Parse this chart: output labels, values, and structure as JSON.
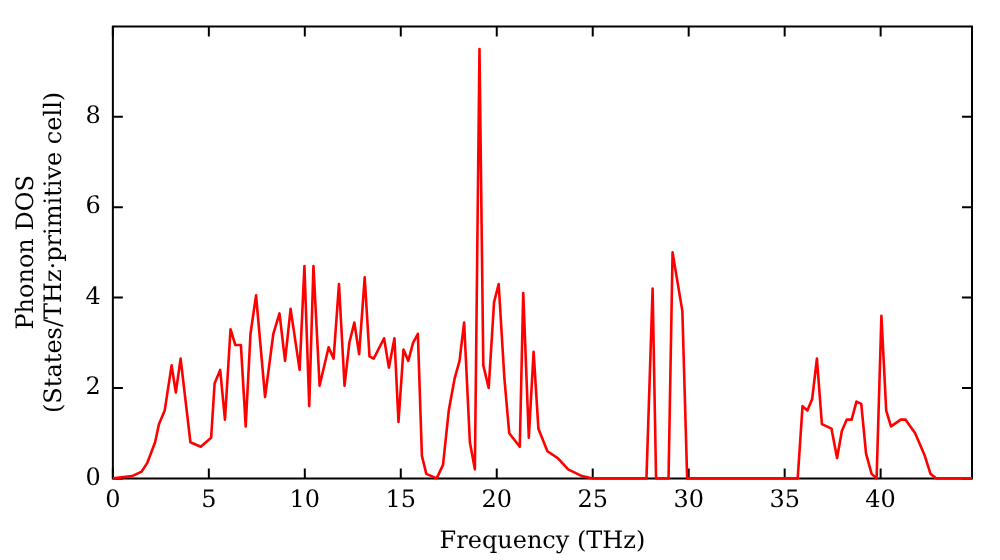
{
  "chart_data": {
    "type": "line",
    "xlabel": "Frequency (THz)",
    "ylabel": "Phonon DOS\n(States/THz·primitive cell)",
    "xlim": [
      0,
      44.76
    ],
    "ylim": [
      0,
      10
    ],
    "xticks": [
      0,
      5,
      10,
      15,
      20,
      25,
      30,
      35,
      40
    ],
    "yticks": [
      0,
      2,
      4,
      6,
      8
    ],
    "grid": false,
    "legend": false,
    "marker": "none",
    "line_style": "solid",
    "series": [
      {
        "color": "#ff0000",
        "x": [
          0,
          1,
          1.5,
          1.8,
          2.2,
          2.4,
          2.7,
          3.06,
          3.28,
          3.53,
          4.04,
          4.58,
          5.12,
          5.3,
          5.59,
          5.84,
          6.13,
          6.38,
          6.67,
          6.92,
          7.17,
          7.46,
          7.93,
          8.36,
          8.68,
          8.97,
          9.26,
          9.73,
          9.98,
          10.23,
          10.45,
          10.77,
          11.24,
          11.5,
          11.78,
          12.07,
          12.32,
          12.58,
          12.83,
          13.12,
          13.37,
          13.59,
          14.13,
          14.38,
          14.67,
          14.88,
          15.14,
          15.39,
          15.64,
          15.89,
          16.1,
          16.33,
          16.87,
          17.2,
          17.5,
          17.8,
          18.06,
          18.3,
          18.6,
          18.86,
          19.1,
          19.3,
          19.58,
          19.86,
          20.1,
          20.4,
          20.65,
          21.2,
          21.38,
          21.67,
          21.92,
          22.17,
          22.64,
          23.18,
          23.72,
          24.44,
          25,
          27.8,
          28.12,
          28.3,
          28.95,
          29.16,
          29.67,
          29.92,
          30,
          35.68,
          35.93,
          36.18,
          36.43,
          36.68,
          36.94,
          37.44,
          37.73,
          37.98,
          38.23,
          38.49,
          38.74,
          38.99,
          39.24,
          39.53,
          39.79,
          40.04,
          40.29,
          40.54,
          41.05,
          41.3,
          41.8,
          42.3,
          42.6,
          42.9,
          44.76
        ],
        "values": [
          0,
          0.05,
          0.15,
          0.35,
          0.8,
          1.2,
          1.5,
          2.5,
          1.9,
          2.65,
          0.8,
          0.7,
          0.9,
          2.1,
          2.4,
          1.3,
          3.3,
          2.95,
          2.95,
          1.15,
          3.2,
          4.05,
          1.8,
          3.2,
          3.65,
          2.6,
          3.75,
          2.4,
          4.7,
          1.6,
          4.7,
          2.05,
          2.9,
          2.65,
          4.3,
          2.05,
          3.0,
          3.45,
          2.75,
          4.45,
          2.7,
          2.65,
          3.1,
          2.45,
          3.1,
          1.25,
          2.85,
          2.6,
          3.0,
          3.2,
          0.5,
          0.1,
          0,
          0.3,
          1.5,
          2.2,
          2.6,
          3.45,
          0.8,
          0.2,
          9.5,
          2.5,
          2.0,
          3.9,
          4.3,
          2.2,
          1.0,
          0.7,
          4.1,
          0.9,
          2.8,
          1.1,
          0.6,
          0.45,
          0.2,
          0.05,
          0,
          0,
          4.2,
          0,
          0,
          5.0,
          3.7,
          0,
          0,
          0,
          1.6,
          1.5,
          1.75,
          2.65,
          1.2,
          1.1,
          0.45,
          1.05,
          1.3,
          1.3,
          1.7,
          1.65,
          0.55,
          0.1,
          0,
          3.6,
          1.5,
          1.15,
          1.3,
          1.3,
          1.0,
          0.5,
          0.1,
          0,
          0
        ]
      }
    ]
  }
}
